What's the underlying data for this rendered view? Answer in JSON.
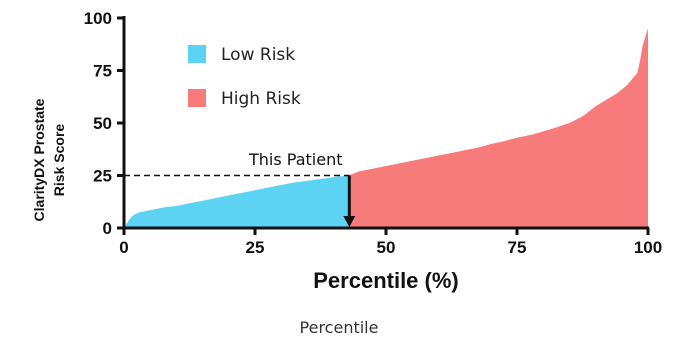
{
  "chart_data": {
    "type": "area",
    "ylabel_lines": [
      "ClarityDX Prostate",
      "Risk Score"
    ],
    "xlabel": "Percentile (%)",
    "xlim": [
      0,
      100
    ],
    "ylim": [
      0,
      100
    ],
    "xticks": [
      0,
      25,
      50,
      75,
      100
    ],
    "yticks": [
      0,
      25,
      50,
      75,
      100
    ],
    "colors": {
      "low": "#5dd3f3",
      "high": "#f87b7b",
      "axis": "#111111"
    },
    "legend": {
      "placement": "top-left",
      "entries": [
        {
          "label": "Low Risk",
          "color": "#5dd3f3"
        },
        {
          "label": "High Risk",
          "color": "#f87b7b"
        }
      ]
    },
    "threshold_percentile": 43,
    "patient": {
      "label": "This Patient",
      "percentile": 43,
      "score": 25
    },
    "curve": {
      "x": [
        0,
        0.5,
        1,
        1.5,
        2,
        3,
        4,
        5,
        6,
        8,
        10,
        12,
        15,
        18,
        20,
        22,
        25,
        28,
        30,
        32,
        35,
        38,
        40,
        42,
        43,
        45,
        48,
        50,
        52,
        55,
        58,
        60,
        62,
        65,
        68,
        70,
        72,
        75,
        78,
        80,
        82,
        85,
        87,
        88,
        90,
        92,
        94,
        95,
        96,
        97,
        98,
        98.5,
        99,
        99.5,
        100
      ],
      "y": [
        0,
        2,
        4,
        5.5,
        6.5,
        7.5,
        8,
        8.5,
        9,
        10,
        10.5,
        11.5,
        13,
        14.5,
        15.5,
        16.5,
        18,
        19.5,
        20.5,
        21.5,
        22.5,
        23.5,
        24.2,
        24.8,
        25.2,
        27,
        28.5,
        29.5,
        30.5,
        32,
        33.5,
        34.5,
        35.5,
        37,
        38.5,
        40,
        41,
        43,
        44.5,
        46,
        47.5,
        50,
        52.5,
        54,
        58,
        61,
        64,
        66,
        68,
        71,
        74,
        80,
        87,
        91,
        95
      ]
    }
  },
  "caption": "Percentile"
}
